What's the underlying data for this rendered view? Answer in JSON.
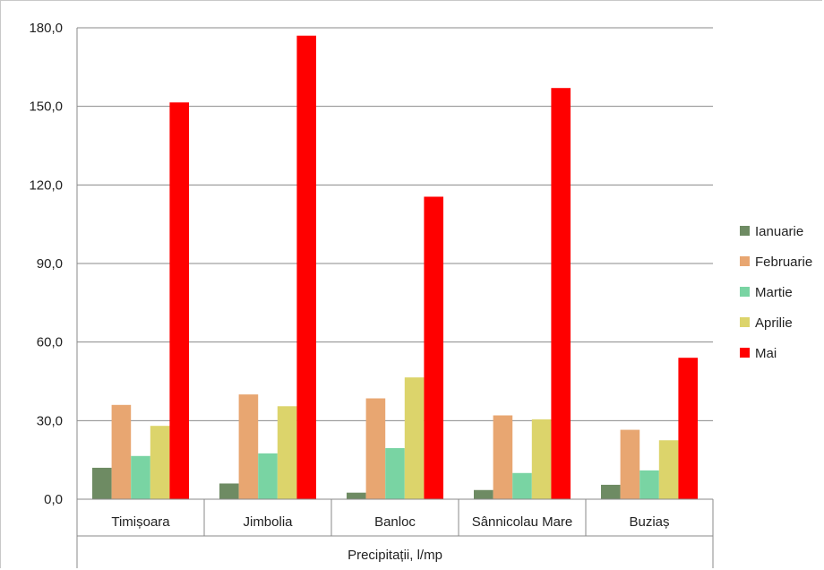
{
  "chart_data": {
    "type": "bar",
    "title": "",
    "xlabel": "Precipitații, l/mp",
    "ylabel": "",
    "ylim": [
      0,
      180
    ],
    "yticks": [
      "0,0",
      "30,0",
      "60,0",
      "90,0",
      "120,0",
      "150,0",
      "180,0"
    ],
    "ytick_values": [
      0,
      30,
      60,
      90,
      120,
      150,
      180
    ],
    "grid": true,
    "legend_position": "right",
    "categories": [
      "Timișoara",
      "Jimbolia",
      "Banloc",
      "Sânnicolau Mare",
      "Buziaș"
    ],
    "series": [
      {
        "name": "Ianuarie",
        "color": "#6e8b63",
        "values": [
          12.0,
          6.0,
          2.5,
          3.5,
          5.5
        ]
      },
      {
        "name": "Februarie",
        "color": "#e8a671",
        "values": [
          36.0,
          40.0,
          38.5,
          32.0,
          26.5
        ]
      },
      {
        "name": "Martie",
        "color": "#79d4a3",
        "values": [
          16.5,
          17.5,
          19.5,
          10.0,
          11.0
        ]
      },
      {
        "name": "Aprilie",
        "color": "#dcd46b",
        "values": [
          28.0,
          35.5,
          46.5,
          30.5,
          22.5
        ]
      },
      {
        "name": "Mai",
        "color": "#ff0000",
        "values": [
          151.5,
          177.0,
          115.5,
          157.0,
          54.0
        ]
      }
    ]
  }
}
